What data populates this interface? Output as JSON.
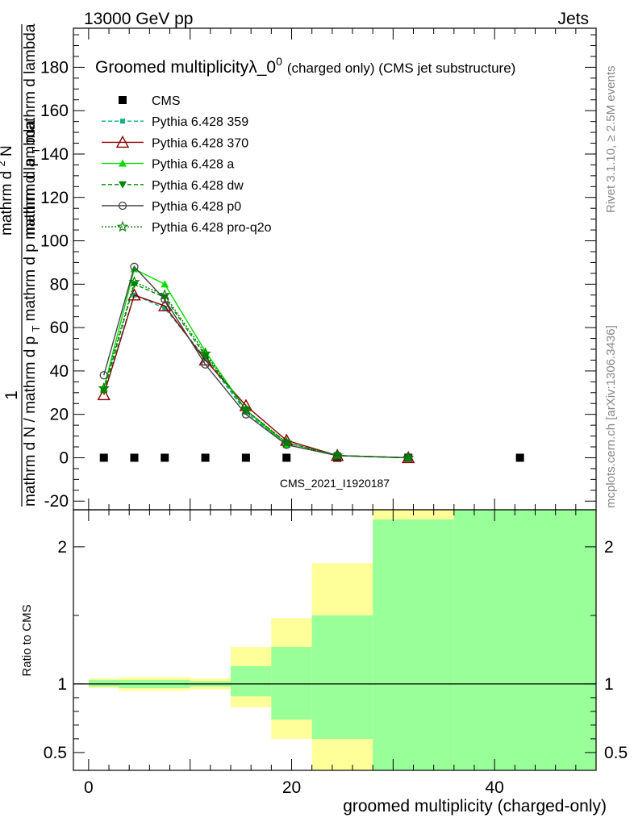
{
  "header": {
    "left": "13000 GeV pp",
    "right": "Jets"
  },
  "side_labels": {
    "rivet": "Rivet 3.1.10, ≥ 2.5M events",
    "mcplots": "mcplots.cern.ch [arXiv:1306.3436]"
  },
  "watermark": "CMS_2021_I1920187",
  "colors": {
    "cms": "#000000",
    "p359": "#00b386",
    "p370": "#8b0000",
    "pa": "#00dd00",
    "pdw": "#008800",
    "pp0": "#444444",
    "pq2o": "#007a00",
    "band_yellow": "#ffff99",
    "band_green": "#99ff99"
  },
  "chart_data": [
    {
      "type": "line",
      "title": "Groomed multiplicityλ_0",
      "title_sup": "0",
      "title_suffix": "(charged only) (CMS jet substructure)",
      "ylabel_lines": [
        "1",
        "mathrm d N / mathrm d p",
        "T",
        "mathrm d N / mathrm d p",
        "mathrm d lambda"
      ],
      "ylabel_text": {
        "one": "1",
        "den_a": "mathrm d N / mathrm d p",
        "den_sub": "T",
        "den_b": "mathrm d lambda",
        "num_a": "mathrm d",
        "num_sup": "2",
        "num_b": "N",
        "num_mid": "mathrm d p",
        "num_mid_sub": "T",
        "num_end": "mathrm d lambda"
      },
      "xlim": [
        -1.5,
        50
      ],
      "ylim": [
        -24,
        198
      ],
      "yticks": [
        -20,
        0,
        20,
        40,
        60,
        80,
        100,
        120,
        140,
        160,
        180
      ],
      "series": [
        {
          "name": "CMS",
          "style": "cms",
          "x": [
            1.5,
            4.5,
            7.5,
            11.5,
            15.5,
            19.5,
            24.5,
            31.5,
            42.5
          ],
          "y": [
            0,
            0,
            0,
            0,
            0,
            0,
            0,
            0,
            0
          ]
        },
        {
          "name": "Pythia 6.428 359",
          "style": "p359",
          "x": [
            1.5,
            4.5,
            7.5,
            11.5,
            15.5,
            19.5,
            24.5,
            31.5
          ],
          "y": [
            31,
            75,
            69,
            46,
            21,
            6,
            1,
            0
          ]
        },
        {
          "name": "Pythia 6.428 370",
          "style": "p370",
          "x": [
            1.5,
            4.5,
            7.5,
            11.5,
            15.5,
            19.5,
            24.5,
            31.5
          ],
          "y": [
            29,
            75,
            70,
            45,
            24,
            8,
            1,
            0
          ]
        },
        {
          "name": "Pythia 6.428 a",
          "style": "pa",
          "x": [
            1.5,
            4.5,
            7.5,
            11.5,
            15.5,
            19.5,
            24.5,
            31.5
          ],
          "y": [
            32,
            87,
            80,
            49,
            22,
            6,
            1,
            0
          ]
        },
        {
          "name": "Pythia 6.428 dw",
          "style": "pdw",
          "x": [
            1.5,
            4.5,
            7.5,
            11.5,
            15.5,
            19.5,
            24.5,
            31.5
          ],
          "y": [
            31,
            80,
            74,
            47,
            22,
            7,
            1,
            0
          ]
        },
        {
          "name": "Pythia 6.428 p0",
          "style": "pp0",
          "x": [
            1.5,
            4.5,
            7.5,
            11.5,
            15.5,
            19.5,
            24.5,
            31.5
          ],
          "y": [
            38,
            88,
            73,
            43,
            20,
            6,
            1,
            0
          ]
        },
        {
          "name": "Pythia 6.428 pro-q2o",
          "style": "pq2o",
          "x": [
            1.5,
            4.5,
            7.5,
            11.5,
            15.5,
            19.5,
            24.5,
            31.5
          ],
          "y": [
            32,
            81,
            75,
            48,
            22,
            7,
            1,
            0
          ]
        }
      ]
    },
    {
      "type": "area",
      "xlabel": "groomed multiplicity (charged-only)",
      "ylabel": "Ratio to CMS",
      "xlim": [
        -1.5,
        50
      ],
      "ylim": [
        0.37,
        2.27
      ],
      "xticks": [
        0,
        20,
        40
      ],
      "yticks": [
        0.5,
        1,
        2
      ],
      "reference": 1,
      "bands": [
        {
          "x": [
            0,
            3
          ],
          "yellow": [
            0.97,
            1.04
          ],
          "green": [
            0.98,
            1.03
          ]
        },
        {
          "x": [
            3,
            10
          ],
          "yellow": [
            0.95,
            1.05
          ],
          "green": [
            0.97,
            1.03
          ]
        },
        {
          "x": [
            10,
            14
          ],
          "yellow": [
            0.96,
            1.04
          ],
          "green": [
            0.98,
            1.02
          ]
        },
        {
          "x": [
            14,
            18
          ],
          "yellow": [
            0.83,
            1.27
          ],
          "green": [
            0.91,
            1.13
          ]
        },
        {
          "x": [
            18,
            22
          ],
          "yellow": [
            0.6,
            1.48
          ],
          "green": [
            0.74,
            1.27
          ]
        },
        {
          "x": [
            22,
            28
          ],
          "yellow": [
            0.37,
            1.88
          ],
          "green": [
            0.6,
            1.5
          ]
        },
        {
          "x": [
            28,
            36
          ],
          "yellow": [
            0.37,
            2.27
          ],
          "green": [
            0.37,
            2.2
          ]
        },
        {
          "x": [
            36,
            50
          ],
          "yellow": [
            0.37,
            2.27
          ],
          "green": [
            0.37,
            2.27
          ]
        }
      ]
    }
  ]
}
